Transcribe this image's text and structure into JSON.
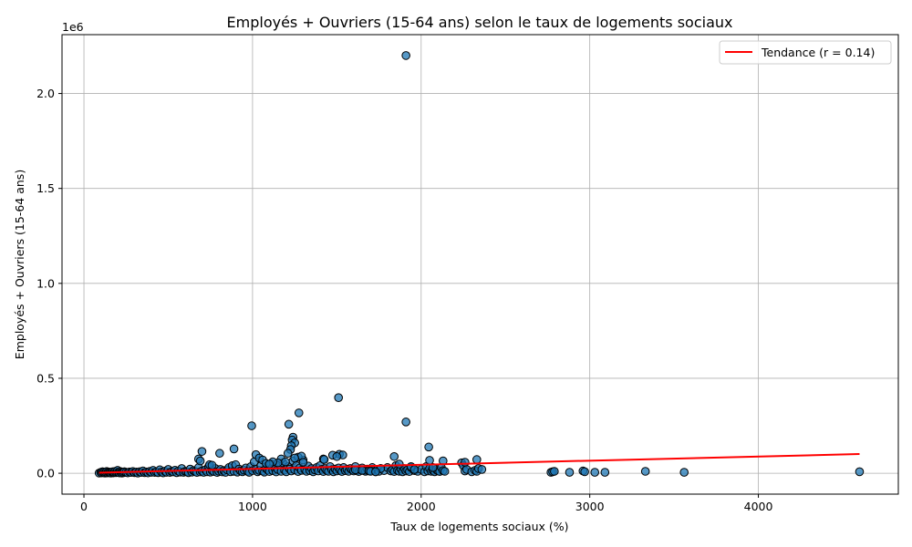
{
  "chart_data": {
    "type": "scatter",
    "title": "Employés + Ouvriers (15-64 ans) selon le taux de logements sociaux",
    "xlabel": "Taux de logements sociaux (%)",
    "ylabel": "Employés + Ouvriers (15-64 ans)",
    "y_offset_label": "1e6",
    "xlim": [
      -130,
      4830
    ],
    "ylim": [
      -110000,
      2310000
    ],
    "xticks": [
      0,
      1000,
      2000,
      3000,
      4000
    ],
    "xtick_labels": [
      "0",
      "1000",
      "2000",
      "3000",
      "4000"
    ],
    "yticks": [
      0,
      500000,
      1000000,
      1500000,
      2000000
    ],
    "ytick_labels": [
      "0.0",
      "0.5",
      "1.0",
      "1.5",
      "2.0"
    ],
    "grid": true,
    "legend": {
      "placement": "top-right",
      "entries": [
        "Tendance (r = 0.14)"
      ]
    },
    "colors": {
      "points": "#1f77b4",
      "point_edge": "#000000",
      "trend": "#ff0000"
    },
    "series": [
      {
        "kind": "points",
        "x": [
          90,
          100,
          105,
          110,
          115,
          120,
          125,
          130,
          135,
          140,
          145,
          150,
          155,
          160,
          165,
          170,
          175,
          180,
          185,
          190,
          195,
          200,
          205,
          210,
          215,
          220,
          225,
          230,
          235,
          240,
          250,
          260,
          270,
          280,
          290,
          300,
          310,
          320,
          330,
          340,
          350,
          360,
          370,
          380,
          390,
          400,
          410,
          420,
          430,
          440,
          450,
          460,
          470,
          480,
          490,
          500,
          510,
          520,
          530,
          540,
          550,
          560,
          570,
          580,
          590,
          600,
          610,
          620,
          630,
          640,
          650,
          660,
          670,
          680,
          690,
          700,
          710,
          720,
          730,
          740,
          750,
          760,
          770,
          780,
          790,
          800,
          810,
          820,
          830,
          840,
          850,
          860,
          870,
          880,
          890,
          900,
          910,
          920,
          930,
          940,
          950,
          960,
          970,
          980,
          990,
          1000,
          1010,
          1020,
          1030,
          1040,
          1050,
          1060,
          1070,
          1080,
          1090,
          1100,
          1110,
          1120,
          1130,
          1140,
          1150,
          1160,
          1170,
          1180,
          1190,
          1200,
          1210,
          1220,
          1230,
          1240,
          1250,
          1260,
          1270,
          1280,
          1290,
          1300,
          1310,
          1320,
          1330,
          1340,
          1350,
          1360,
          1370,
          1380,
          1390,
          1400,
          1410,
          1420,
          1430,
          1440,
          1450,
          1460,
          1470,
          1480,
          1490,
          1500,
          1510,
          1520,
          1530,
          1540,
          1550,
          1560,
          1570,
          1580,
          1590,
          1600,
          1610,
          1620,
          1630,
          1640,
          1650,
          1660,
          1670,
          1680,
          1690,
          1700,
          1710,
          1720,
          1730,
          1740,
          1750,
          1760,
          1780,
          1800,
          1820,
          1830,
          1840,
          1850,
          1860,
          1870,
          1880,
          1890,
          1900,
          1910,
          1920,
          1930,
          1940,
          1960,
          1980,
          2000,
          2020,
          2030,
          2040,
          2050,
          2060,
          2070,
          2080,
          2090,
          2100,
          2110,
          2120,
          2130,
          2140,
          2240,
          2250,
          2260,
          2270,
          2300,
          2320,
          2330,
          2340,
          2360,
          2770,
          2780,
          2790,
          2880,
          2960,
          2970,
          3030,
          3090,
          3330,
          3560,
          4600,
          1910,
          1510,
          1275,
          1910,
          995,
          1215,
          2045,
          890,
          700,
          805,
          1240,
          1235,
          1250,
          1230,
          1225,
          1210,
          1020,
          1515,
          1475,
          1535,
          1420,
          1425,
          1840,
          1270,
          1290,
          1500,
          1250,
          1040,
          1060,
          1170,
          1195,
          1150,
          1120,
          1080,
          1300,
          1100,
          680,
          690,
          745,
          760,
          2330,
          2050,
          2260,
          2130,
          1870,
          1940,
          2070,
          1760,
          1960,
          1610,
          1650,
          1690,
          1700,
          1730
        ],
        "y": [
          1000,
          5000,
          2000,
          8000,
          3000,
          6000,
          1000,
          4000,
          9000,
          2000,
          7000,
          3000,
          5000,
          1000,
          6000,
          8000,
          2000,
          4000,
          10000,
          3000,
          7000,
          15000,
          5000,
          2000,
          9000,
          4000,
          1000,
          6000,
          3000,
          8000,
          5000,
          2000,
          7000,
          4000,
          9000,
          3000,
          6000,
          1000,
          8000,
          4000,
          12000,
          3000,
          7000,
          2000,
          10000,
          5000,
          15000,
          4000,
          8000,
          3000,
          18000,
          6000,
          2000,
          11000,
          5000,
          20000,
          4000,
          9000,
          7000,
          16000,
          3000,
          12000,
          6000,
          25000,
          5000,
          10000,
          8000,
          3000,
          22000,
          6000,
          14000,
          9000,
          4000,
          30000,
          7000,
          12000,
          5000,
          18000,
          8000,
          35000,
          6000,
          15000,
          9000,
          25000,
          4000,
          11000,
          20000,
          7000,
          14000,
          5000,
          18000,
          30000,
          8000,
          40000,
          10000,
          45000,
          6000,
          22000,
          12000,
          8000,
          16000,
          28000,
          10000,
          5000,
          35000,
          14000,
          60000,
          20000,
          8000,
          15000,
          40000,
          12000,
          6000,
          25000,
          18000,
          9000,
          50000,
          14000,
          30000,
          7000,
          20000,
          45000,
          10000,
          55000,
          16000,
          8000,
          35000,
          22000,
          12000,
          65000,
          18000,
          40000,
          9000,
          28000,
          15000,
          70000,
          20000,
          10000,
          38000,
          14000,
          25000,
          8000,
          18000,
          30000,
          12000,
          40000,
          20000,
          9000,
          25000,
          15000,
          10000,
          35000,
          18000,
          8000,
          22000,
          12000,
          28000,
          16000,
          9000,
          30000,
          14000,
          20000,
          10000,
          25000,
          18000,
          12000,
          35000,
          15000,
          9000,
          20000,
          28000,
          14000,
          10000,
          22000,
          18000,
          12000,
          30000,
          15000,
          8000,
          20000,
          10000,
          25000,
          14000,
          30000,
          12000,
          18000,
          9000,
          40000,
          15000,
          10000,
          22000,
          8000,
          25000,
          12000,
          18000,
          9000,
          30000,
          14000,
          10000,
          20000,
          8000,
          35000,
          12000,
          25000,
          10000,
          15000,
          8000,
          20000,
          12000,
          9000,
          30000,
          14000,
          10000,
          55000,
          40000,
          12000,
          20000,
          8000,
          15000,
          10000,
          25000,
          20000,
          5000,
          8000,
          10000,
          5000,
          12000,
          8000,
          5000,
          5000,
          10000,
          5000,
          8000,
          2200000,
          398000,
          318000,
          270000,
          250000,
          258000,
          138000,
          128000,
          115000,
          105000,
          190000,
          175000,
          160000,
          145000,
          125000,
          105000,
          98000,
          100000,
          95000,
          96000,
          75000,
          72000,
          88000,
          85000,
          90000,
          88000,
          80000,
          80000,
          70000,
          75000,
          60000,
          55000,
          60000,
          52000,
          58000,
          48000,
          75000,
          65000,
          45000,
          42000,
          72000,
          68000,
          58000,
          65000,
          48000,
          35000,
          30000,
          25000,
          20000,
          18000,
          15000,
          12000,
          10000,
          8000
        ]
      },
      {
        "kind": "trend",
        "name": "Tendance (r = 0.14)",
        "x": [
          90,
          4600
        ],
        "y": [
          3000,
          101000
        ]
      }
    ]
  }
}
